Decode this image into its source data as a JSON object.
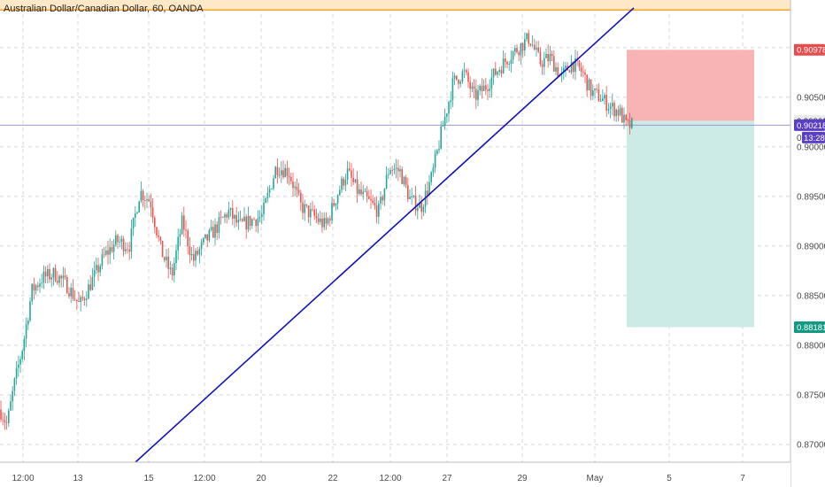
{
  "chart_data": {
    "type": "candlestick",
    "title": "Australian Dollar/Canadian Dollar, 60, OANDA",
    "ylim": [
      0.8682,
      0.9148
    ],
    "y_ticks": [
      "0.91000",
      "0.90500",
      "0.90000",
      "0.89500",
      "0.89000",
      "0.88500",
      "0.88000",
      "0.87500",
      "0.87000"
    ],
    "x_ticks": [
      "12:00",
      "13",
      "15",
      "12:00",
      "20",
      "22",
      "12:00",
      "27",
      "29",
      "May",
      "5",
      "7"
    ],
    "price_path": [
      [
        0,
        0.8735
      ],
      [
        8,
        0.872
      ],
      [
        16,
        0.876
      ],
      [
        26,
        0.88
      ],
      [
        36,
        0.8855
      ],
      [
        48,
        0.8868
      ],
      [
        62,
        0.8872
      ],
      [
        76,
        0.886
      ],
      [
        90,
        0.884
      ],
      [
        104,
        0.8865
      ],
      [
        118,
        0.889
      ],
      [
        132,
        0.8905
      ],
      [
        146,
        0.89
      ],
      [
        158,
        0.8955
      ],
      [
        170,
        0.8945
      ],
      [
        182,
        0.8895
      ],
      [
        194,
        0.887
      ],
      [
        206,
        0.8925
      ],
      [
        218,
        0.8885
      ],
      [
        232,
        0.8905
      ],
      [
        246,
        0.892
      ],
      [
        258,
        0.8935
      ],
      [
        270,
        0.892
      ],
      [
        282,
        0.8925
      ],
      [
        296,
        0.893
      ],
      [
        312,
        0.898
      ],
      [
        326,
        0.8975
      ],
      [
        340,
        0.894
      ],
      [
        354,
        0.893
      ],
      [
        368,
        0.892
      ],
      [
        380,
        0.895
      ],
      [
        392,
        0.8975
      ],
      [
        404,
        0.8955
      ],
      [
        416,
        0.8945
      ],
      [
        428,
        0.8935
      ],
      [
        440,
        0.898
      ],
      [
        452,
        0.8975
      ],
      [
        464,
        0.8945
      ],
      [
        476,
        0.894
      ],
      [
        488,
        0.897
      ],
      [
        500,
        0.902
      ],
      [
        512,
        0.9065
      ],
      [
        524,
        0.9075
      ],
      [
        536,
        0.905
      ],
      [
        548,
        0.906
      ],
      [
        560,
        0.9075
      ],
      [
        574,
        0.909
      ],
      [
        586,
        0.91
      ],
      [
        598,
        0.911
      ],
      [
        610,
        0.9085
      ],
      [
        622,
        0.909
      ],
      [
        634,
        0.907
      ],
      [
        646,
        0.9085
      ],
      [
        658,
        0.9075
      ],
      [
        668,
        0.9055
      ],
      [
        678,
        0.905
      ],
      [
        690,
        0.904
      ],
      [
        700,
        0.9035
      ],
      [
        708,
        0.902
      ],
      [
        714,
        0.9022
      ]
    ],
    "trendline": [
      [
        153,
        0.8682
      ],
      [
        716,
        0.914
      ]
    ],
    "resistance_line": 0.9138,
    "position": {
      "entry": 0.90261,
      "stop": 0.90978,
      "target": 0.88181
    },
    "price_labels": {
      "stop": "0.90978",
      "entry": "0.90261",
      "current": "0.90218",
      "countdown": "13:28",
      "target": "0.88181",
      "partial": "0"
    },
    "grid": true,
    "colors": {
      "up": "#26a69a",
      "down": "#ef5350",
      "trendline": "#1212b8",
      "resistance": "#f5a623",
      "resistance_zone": "#fde9c8",
      "stop_zone": "#f8b4b4",
      "target_zone": "#cdebe6",
      "entry_line": "#9c96d0",
      "stop_tag": "#e84d4d",
      "target_tag": "#139a85",
      "current_tag": "#5b3fc4"
    }
  }
}
